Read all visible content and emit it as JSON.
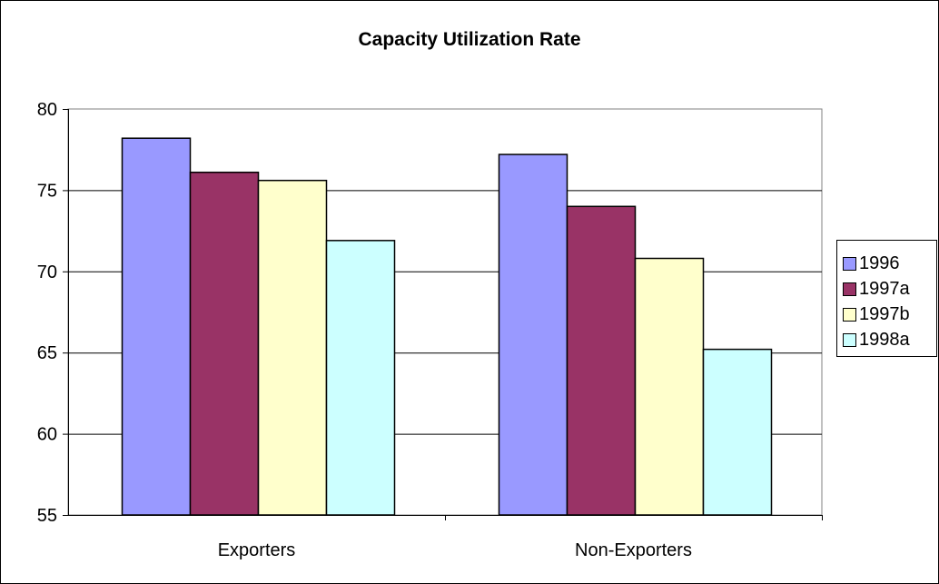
{
  "chart_data": {
    "type": "bar",
    "title": "Capacity Utilization Rate",
    "xlabel": "",
    "ylabel": "",
    "categories": [
      "Exporters",
      "Non-Exporters"
    ],
    "series": [
      {
        "name": "1996",
        "values": [
          78.2,
          77.2
        ],
        "color": "#9999ff"
      },
      {
        "name": "1997a",
        "values": [
          76.1,
          74.0
        ],
        "color": "#993366"
      },
      {
        "name": "1997b",
        "values": [
          75.6,
          70.8
        ],
        "color": "#ffffcc"
      },
      {
        "name": "1998a",
        "values": [
          71.9,
          65.2
        ],
        "color": "#ccffff"
      }
    ],
    "ylim": [
      55,
      80
    ],
    "yticks": [
      "55",
      "60",
      "65",
      "70",
      "75",
      "80"
    ],
    "grid": true,
    "legend": "right"
  }
}
